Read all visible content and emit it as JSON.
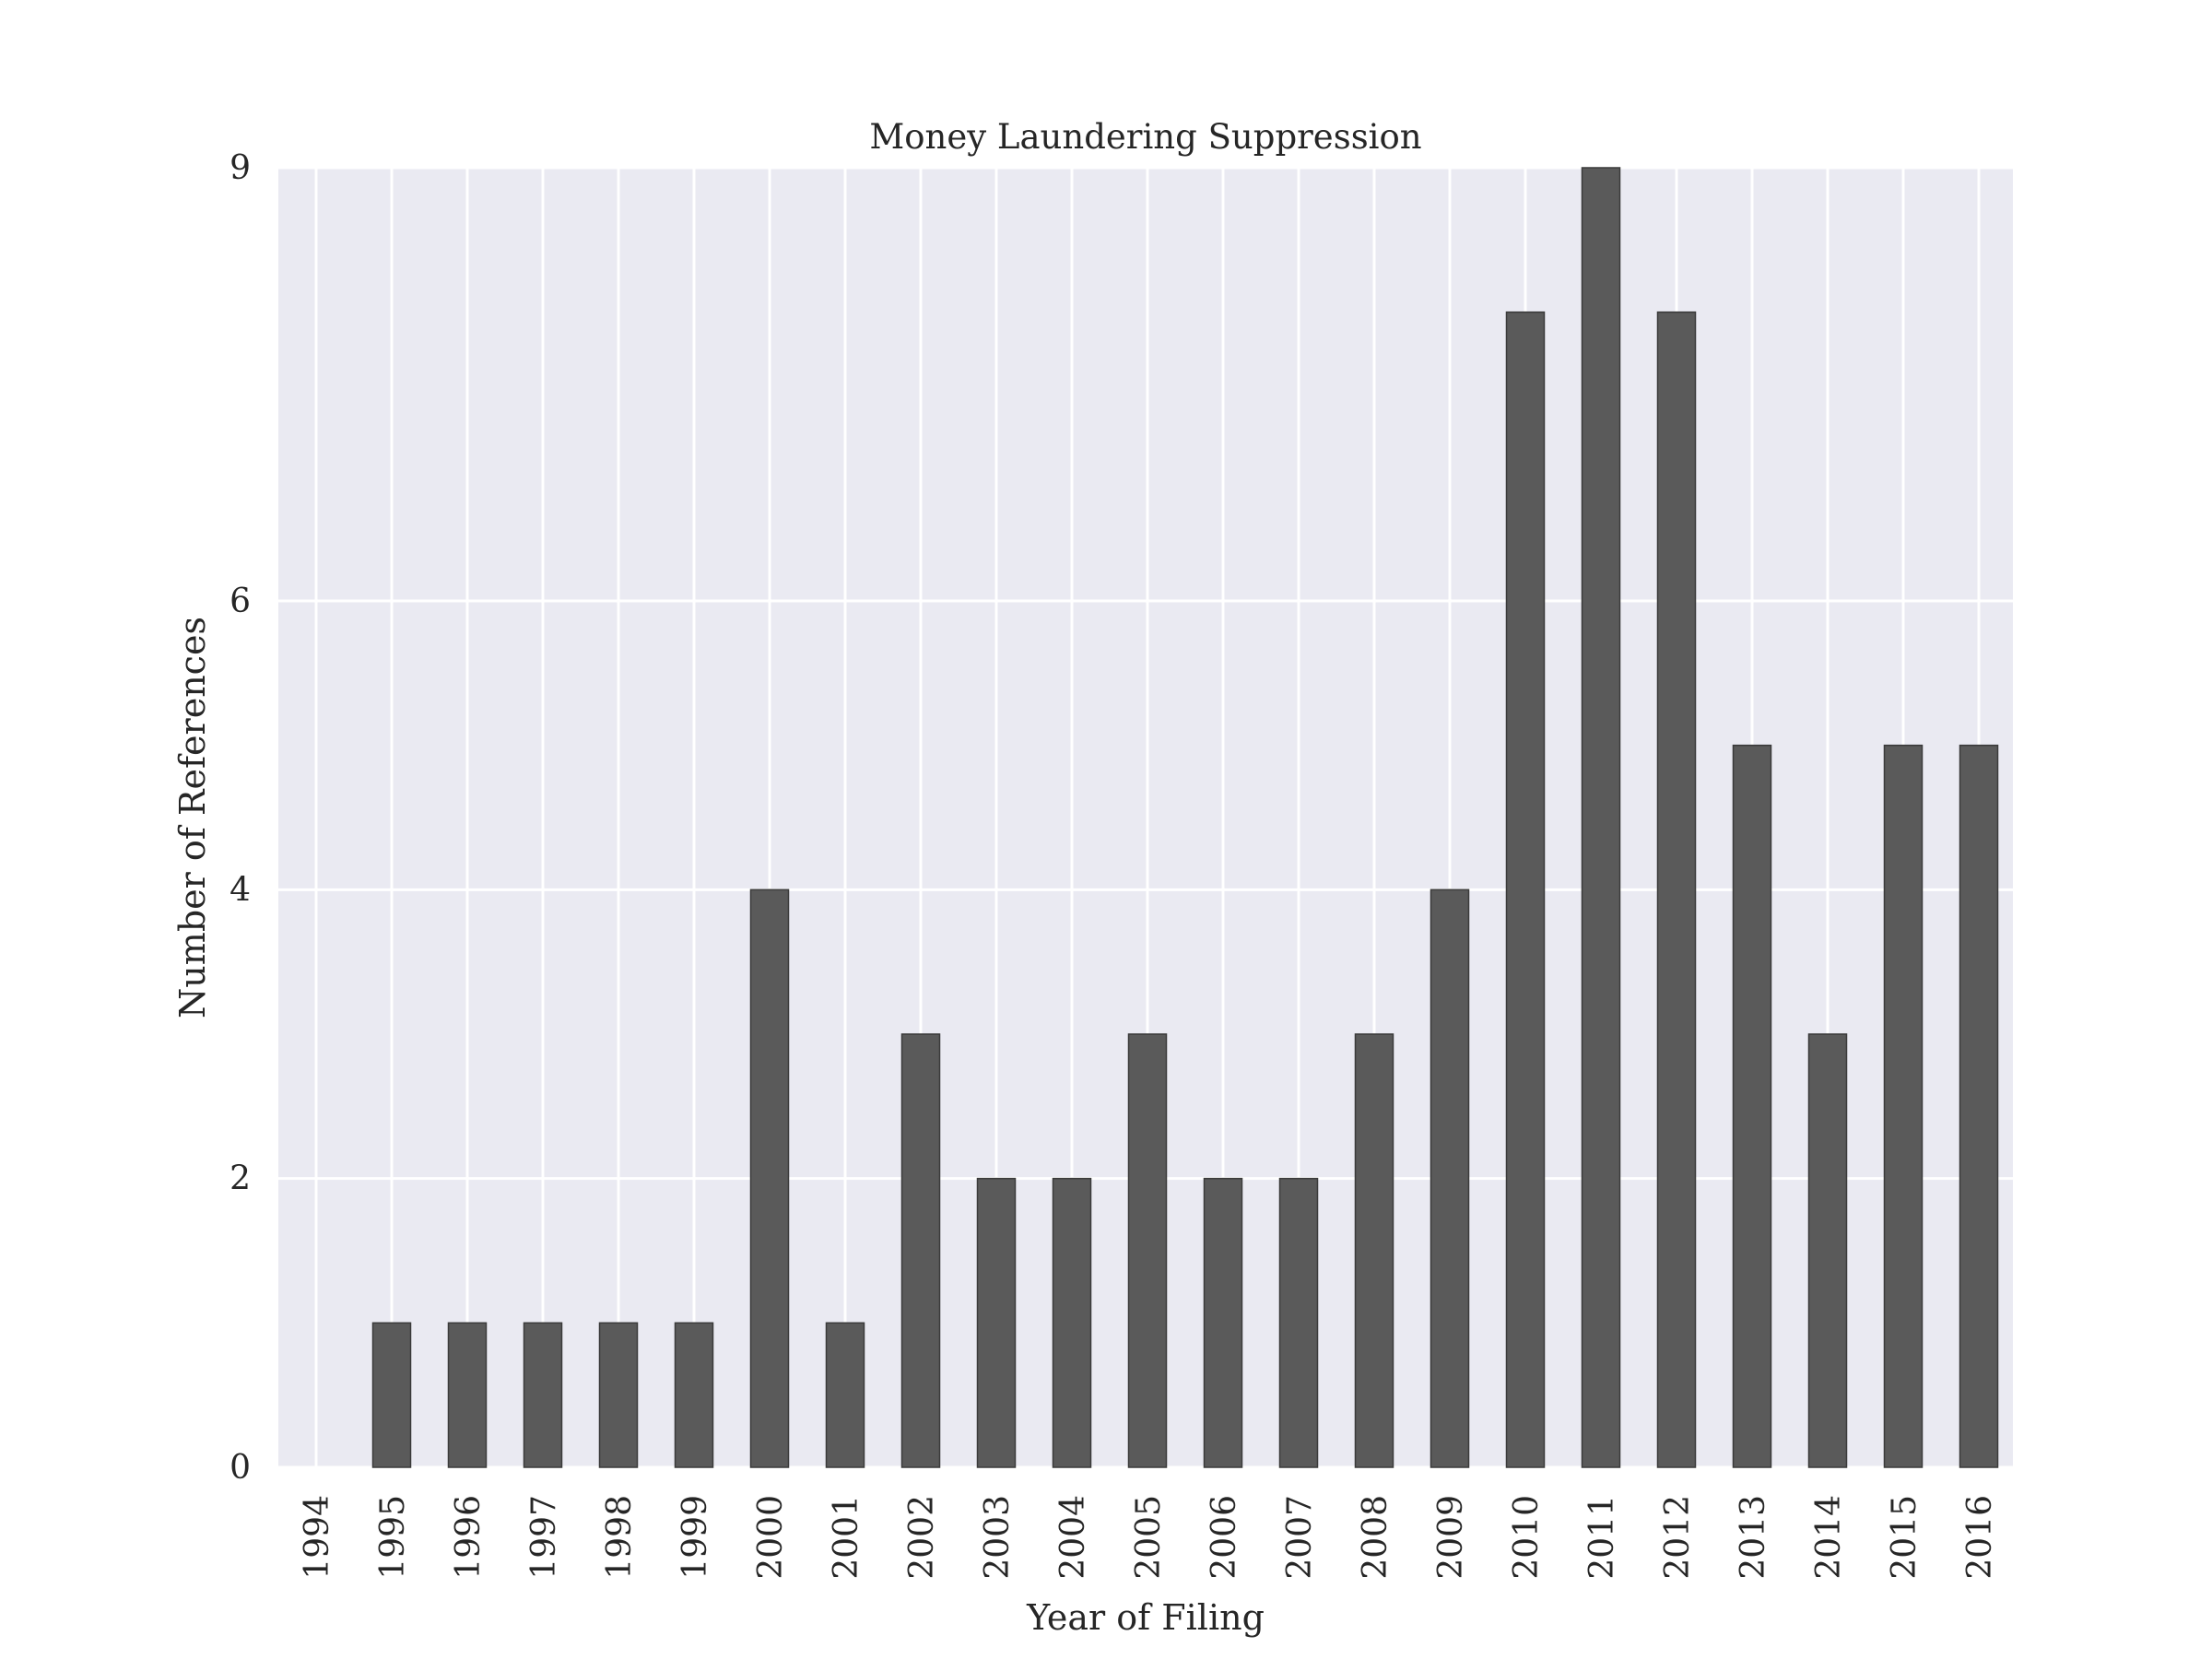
{
  "chart_data": {
    "type": "bar",
    "title": "Money Laundering Suppression",
    "xlabel": "Year of Filing",
    "ylabel": "Number of References",
    "categories": [
      "1994",
      "1995",
      "1996",
      "1997",
      "1998",
      "1999",
      "2000",
      "2001",
      "2002",
      "2003",
      "2004",
      "2005",
      "2006",
      "2007",
      "2008",
      "2009",
      "2010",
      "2011",
      "2012",
      "2013",
      "2014",
      "2015",
      "2016"
    ],
    "values": [
      0,
      1,
      1,
      1,
      1,
      1,
      4,
      1,
      3,
      2,
      2,
      3,
      2,
      2,
      3,
      4,
      8,
      9,
      8,
      5,
      3,
      5,
      5
    ],
    "ylim": [
      0,
      9
    ],
    "yticks": [
      0,
      2,
      4,
      6,
      9
    ],
    "grid": true,
    "colors": {
      "bar_fill": "#5a5a5a",
      "bar_stroke": "#3a3a3a",
      "plot_background": "#eaeaf2",
      "grid": "#ffffff"
    }
  }
}
